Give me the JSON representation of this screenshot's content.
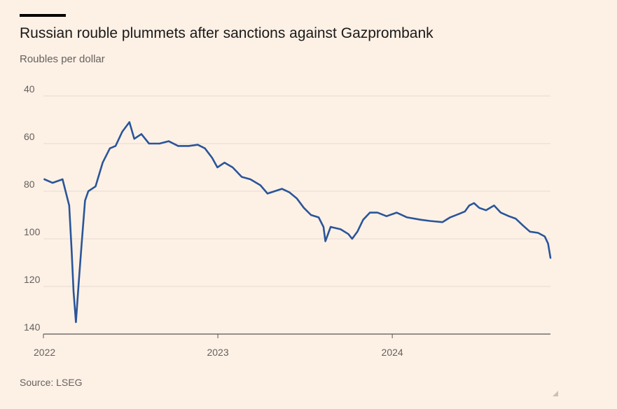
{
  "title": "Russian rouble plummets after sanctions against Gazprombank",
  "subtitle": "Roubles per dollar",
  "source": "Source: LSEG",
  "chart_data": {
    "type": "line",
    "title": "Russian rouble plummets after sanctions against Gazprombank",
    "ylabel": "Roubles per dollar",
    "y_inverted": true,
    "ylim": [
      40,
      140
    ],
    "yticks": [
      40,
      60,
      80,
      100,
      120,
      140
    ],
    "xlim": [
      "2022-01-01",
      "2024-11-27"
    ],
    "xticks": [
      {
        "label": "2022",
        "date": "2022-01-01"
      },
      {
        "label": "2023",
        "date": "2023-01-01"
      },
      {
        "label": "2024",
        "date": "2024-01-01"
      }
    ],
    "grid": "horizontal",
    "line_color": "#2a5599",
    "series": [
      {
        "points": [
          [
            "2022-01-03",
            75
          ],
          [
            "2022-01-20",
            76.5
          ],
          [
            "2022-02-10",
            75
          ],
          [
            "2022-02-24",
            86
          ],
          [
            "2022-03-01",
            105
          ],
          [
            "2022-03-05",
            122
          ],
          [
            "2022-03-10",
            135
          ],
          [
            "2022-03-16",
            118
          ],
          [
            "2022-03-22",
            102
          ],
          [
            "2022-03-29",
            84
          ],
          [
            "2022-04-05",
            80
          ],
          [
            "2022-04-20",
            78
          ],
          [
            "2022-05-05",
            68
          ],
          [
            "2022-05-20",
            62
          ],
          [
            "2022-06-01",
            61
          ],
          [
            "2022-06-15",
            55
          ],
          [
            "2022-06-30",
            51
          ],
          [
            "2022-07-10",
            58
          ],
          [
            "2022-07-25",
            56
          ],
          [
            "2022-08-10",
            60
          ],
          [
            "2022-09-01",
            60
          ],
          [
            "2022-09-20",
            59
          ],
          [
            "2022-10-10",
            61
          ],
          [
            "2022-11-01",
            61
          ],
          [
            "2022-11-20",
            60.5
          ],
          [
            "2022-12-05",
            62
          ],
          [
            "2022-12-20",
            66
          ],
          [
            "2022-12-31",
            70
          ],
          [
            "2023-01-15",
            68
          ],
          [
            "2023-02-01",
            70
          ],
          [
            "2023-02-20",
            74
          ],
          [
            "2023-03-10",
            75
          ],
          [
            "2023-03-31",
            77.5
          ],
          [
            "2023-04-15",
            81
          ],
          [
            "2023-04-30",
            80
          ],
          [
            "2023-05-15",
            79
          ],
          [
            "2023-05-31",
            80.5
          ],
          [
            "2023-06-15",
            83
          ],
          [
            "2023-06-30",
            87
          ],
          [
            "2023-07-15",
            90
          ],
          [
            "2023-07-31",
            91
          ],
          [
            "2023-08-10",
            95
          ],
          [
            "2023-08-14",
            101
          ],
          [
            "2023-08-25",
            95
          ],
          [
            "2023-09-15",
            96
          ],
          [
            "2023-10-01",
            98
          ],
          [
            "2023-10-09",
            100
          ],
          [
            "2023-10-20",
            97
          ],
          [
            "2023-11-01",
            92
          ],
          [
            "2023-11-15",
            89
          ],
          [
            "2023-12-01",
            89
          ],
          [
            "2023-12-20",
            90.5
          ],
          [
            "2024-01-10",
            89
          ],
          [
            "2024-02-01",
            91
          ],
          [
            "2024-03-01",
            92
          ],
          [
            "2024-03-20",
            92.5
          ],
          [
            "2024-04-15",
            93
          ],
          [
            "2024-05-01",
            91
          ],
          [
            "2024-05-20",
            89.5
          ],
          [
            "2024-06-01",
            88.5
          ],
          [
            "2024-06-10",
            86
          ],
          [
            "2024-06-20",
            85
          ],
          [
            "2024-07-01",
            87
          ],
          [
            "2024-07-15",
            88
          ],
          [
            "2024-08-01",
            86
          ],
          [
            "2024-08-15",
            89
          ],
          [
            "2024-09-01",
            90.5
          ],
          [
            "2024-09-15",
            91.5
          ],
          [
            "2024-10-01",
            94.5
          ],
          [
            "2024-10-15",
            97
          ],
          [
            "2024-11-01",
            97.5
          ],
          [
            "2024-11-15",
            99
          ],
          [
            "2024-11-22",
            102
          ],
          [
            "2024-11-27",
            108
          ]
        ]
      }
    ]
  }
}
